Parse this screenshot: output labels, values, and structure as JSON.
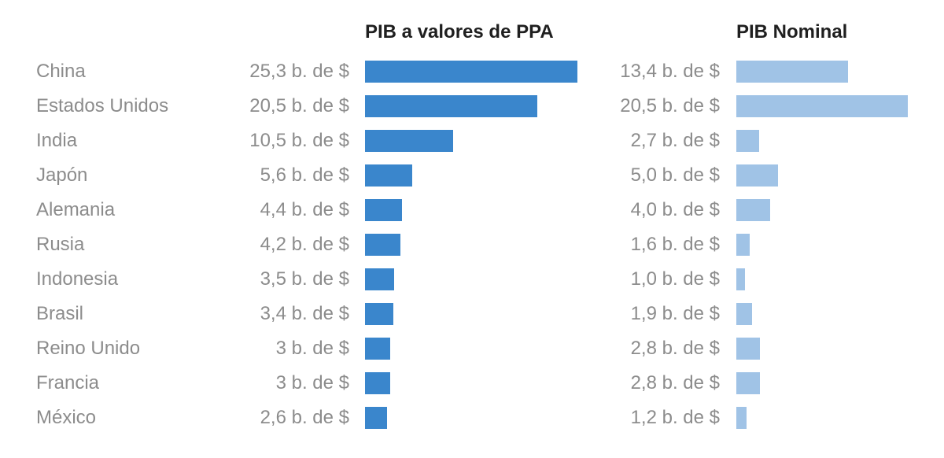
{
  "chart_data": {
    "type": "bar",
    "orientation": "horizontal",
    "categories": [
      "China",
      "Estados Unidos",
      "India",
      "Japón",
      "Alemania",
      "Rusia",
      "Indonesia",
      "Brasil",
      "Reino Unido",
      "Francia",
      "México"
    ],
    "series": [
      {
        "name": "PIB a valores de PPA",
        "color": "#3a86cc",
        "values": [
          25.3,
          20.5,
          10.5,
          5.6,
          4.4,
          4.2,
          3.5,
          3.4,
          3,
          3,
          2.6
        ],
        "labels": [
          "25,3 b. de $",
          "20,5 b. de $",
          "10,5 b. de $",
          "5,6 b. de $",
          "4,4 b. de $",
          "4,2 b. de $",
          "3,5 b. de $",
          "3,4 b. de $",
          "3 b. de $",
          "3 b. de $",
          "2,6 b. de $"
        ],
        "xlim": [
          0,
          25.3
        ]
      },
      {
        "name": "PIB Nominal",
        "color": "#a0c3e6",
        "values": [
          13.4,
          20.5,
          2.7,
          5.0,
          4.0,
          1.6,
          1.0,
          1.9,
          2.8,
          2.8,
          1.2
        ],
        "labels": [
          "13,4 b. de $",
          "20,5 b. de $",
          "2,7 b. de $",
          "5,0 b. de $",
          "4,0 b. de $",
          "1,6 b. de $",
          "1,0 b. de $",
          "1,9 b. de $",
          "2,8 b. de $",
          "2,8 b. de $",
          "1,2 b. de $"
        ],
        "xlim": [
          0,
          20.5
        ]
      }
    ],
    "grid": false,
    "legend": "none"
  }
}
